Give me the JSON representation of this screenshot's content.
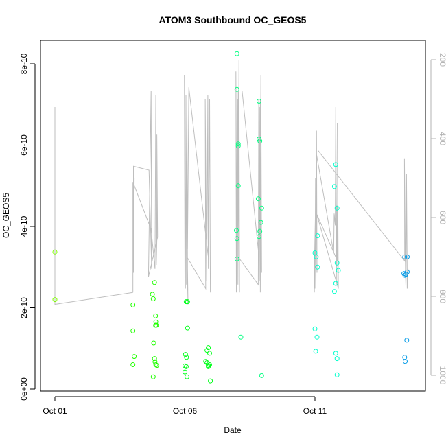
{
  "chart_data": {
    "type": "scatter",
    "title": "ATOM3 Southbound OC_GEOS5",
    "xlabel": "Date",
    "ylabel": "OC_GEOS5",
    "x_ticks": [
      "Oct 01",
      "Oct 06",
      "Oct 11"
    ],
    "y_ticks": [
      "0e+00",
      "2e-10",
      "4e-10",
      "6e-10",
      "8e-10"
    ],
    "y_tick_values": [
      0,
      2e-10,
      4e-10,
      6e-10,
      8e-10
    ],
    "y2_ticks": [
      "200",
      "400",
      "600",
      "800",
      "1000"
    ],
    "y2_tick_values": [
      200,
      400,
      600,
      800,
      1000
    ],
    "xlim_days": [
      0.9,
      14.8
    ],
    "ylim": [
      0,
      8.3e-10
    ],
    "y2lim": [
      1040,
      150
    ],
    "grid": false,
    "legend": "none",
    "line_color": "#bebebe",
    "point_series": [
      {
        "color": "#80ff00",
        "points": [
          [
            1.0,
            3.37e-10
          ],
          [
            1.0,
            2.2e-10
          ]
        ]
      },
      {
        "color": "#20ff00",
        "points": [
          [
            4.0,
            2.07e-10
          ],
          [
            4.0,
            1.43e-10
          ],
          [
            4.05,
            8e-11
          ],
          [
            4.0,
            6e-11
          ],
          [
            4.75,
            2.33e-10
          ],
          [
            4.78,
            2.22e-10
          ],
          [
            4.83,
            2.62e-10
          ],
          [
            4.87,
            1.8e-10
          ],
          [
            4.88,
            1.65e-10
          ],
          [
            4.87,
            1.57e-10
          ],
          [
            4.9,
            1.57e-10
          ],
          [
            4.8,
            1.13e-10
          ],
          [
            4.83,
            7.5e-11
          ],
          [
            4.85,
            6.7e-11
          ],
          [
            4.88,
            6e-11
          ],
          [
            4.92,
            5.8e-11
          ],
          [
            4.78,
            3e-11
          ]
        ]
      },
      {
        "color": "#00ff1a",
        "points": [
          [
            6.05,
            2.15e-10
          ],
          [
            6.1,
            2.15e-10
          ],
          [
            6.1,
            1.5e-10
          ],
          [
            6.02,
            8.5e-11
          ],
          [
            6.06,
            7.8e-11
          ],
          [
            6.0,
            5.7e-11
          ],
          [
            6.05,
            5.5e-11
          ],
          [
            6.0,
            4.2e-11
          ],
          [
            6.08,
            3e-11
          ],
          [
            6.85,
            9.5e-11
          ],
          [
            6.9,
            1.02e-10
          ],
          [
            6.95,
            8.8e-11
          ],
          [
            6.8,
            6.8e-11
          ],
          [
            6.85,
            6.5e-11
          ],
          [
            6.9,
            5.8e-11
          ],
          [
            6.95,
            6e-11
          ],
          [
            6.9,
            5.5e-11
          ],
          [
            6.98,
            2e-11
          ]
        ]
      },
      {
        "color": "#00ff80",
        "points": [
          [
            8.0,
            8.25e-10
          ],
          [
            8.0,
            7.37e-10
          ],
          [
            8.05,
            6.03e-10
          ],
          [
            8.05,
            5.98e-10
          ],
          [
            8.05,
            5e-10
          ],
          [
            7.98,
            3.9e-10
          ],
          [
            8.0,
            3.7e-10
          ],
          [
            8.0,
            3.2e-10
          ],
          [
            8.15,
            1.28e-10
          ],
          [
            8.85,
            7.08e-10
          ],
          [
            8.85,
            6.15e-10
          ],
          [
            8.88,
            6.1e-10
          ],
          [
            8.82,
            4.68e-10
          ],
          [
            8.95,
            4.45e-10
          ],
          [
            8.92,
            4.1e-10
          ],
          [
            8.88,
            3.88e-10
          ],
          [
            8.85,
            3.75e-10
          ],
          [
            8.95,
            3.3e-11
          ]
        ]
      },
      {
        "color": "#00ffcc",
        "points": [
          [
            11.0,
            3.35e-10
          ],
          [
            11.05,
            3.25e-10
          ],
          [
            11.1,
            3.77e-10
          ],
          [
            11.1,
            3e-10
          ],
          [
            11.0,
            1.48e-10
          ],
          [
            11.08,
            1.28e-10
          ],
          [
            11.03,
            9.3e-11
          ],
          [
            11.8,
            5.52e-10
          ],
          [
            11.75,
            4.98e-10
          ],
          [
            11.85,
            4.45e-10
          ],
          [
            11.85,
            3.1e-10
          ],
          [
            11.9,
            2.92e-10
          ],
          [
            11.8,
            2.6e-10
          ],
          [
            11.75,
            2.4e-10
          ],
          [
            11.8,
            8.8e-11
          ],
          [
            11.85,
            7.5e-11
          ],
          [
            11.85,
            3.5e-11
          ]
        ]
      },
      {
        "color": "#0099e6",
        "points": [
          [
            14.45,
            3.25e-10
          ],
          [
            14.55,
            3.25e-10
          ],
          [
            14.55,
            2.88e-10
          ],
          [
            14.42,
            2.84e-10
          ],
          [
            14.46,
            2.8e-10
          ],
          [
            14.5,
            2.82e-10
          ],
          [
            14.53,
            1.2e-10
          ],
          [
            14.45,
            7.8e-11
          ],
          [
            14.47,
            6.8e-11
          ]
        ]
      }
    ],
    "pressure_profiles": [
      {
        "points": [
          [
            1.0,
            320
          ],
          [
            1.0,
            820
          ],
          [
            4.0,
            790
          ]
        ]
      },
      {
        "points": [
          [
            4.0,
            790
          ],
          [
            4.0,
            510
          ],
          [
            4.7,
            630
          ],
          [
            4.85,
            730
          ],
          [
            4.88,
            290
          ],
          [
            4.9,
            720
          ],
          [
            4.92,
            660
          ],
          [
            4.92,
            390
          ],
          [
            4.95,
            650
          ],
          [
            4.6,
            750
          ],
          [
            4.7,
            280
          ],
          [
            4.72,
            730
          ],
          [
            4.62,
            480
          ],
          [
            4.02,
            470
          ],
          [
            4.02,
            740
          ],
          [
            4.05,
            500
          ]
        ]
      },
      {
        "points": [
          [
            6.0,
            760
          ],
          [
            5.98,
            240
          ],
          [
            6.02,
            780
          ],
          [
            6.04,
            290
          ],
          [
            6.06,
            770
          ],
          [
            6.08,
            330
          ],
          [
            6.1,
            730
          ],
          [
            6.12,
            820
          ],
          [
            6.08,
            700
          ],
          [
            6.8,
            780
          ],
          [
            6.78,
            300
          ],
          [
            6.84,
            760
          ],
          [
            6.88,
            290
          ],
          [
            6.9,
            730
          ],
          [
            6.95,
            300
          ],
          [
            6.98,
            790
          ],
          [
            6.95,
            310
          ],
          [
            6.9,
            700
          ],
          [
            6.15,
            270
          ],
          [
            6.1,
            680
          ]
        ]
      },
      {
        "points": [
          [
            7.98,
            790
          ],
          [
            7.96,
            230
          ],
          [
            8.0,
            780
          ],
          [
            8.02,
            300
          ],
          [
            8.04,
            770
          ],
          [
            8.05,
            280
          ],
          [
            8.1,
            790
          ],
          [
            8.08,
            200
          ],
          [
            8.05,
            700
          ],
          [
            8.82,
            770
          ],
          [
            8.84,
            300
          ],
          [
            8.86,
            760
          ],
          [
            8.88,
            320
          ],
          [
            8.9,
            790
          ],
          [
            8.92,
            240
          ],
          [
            8.95,
            740
          ],
          [
            8.9,
            300
          ],
          [
            8.85,
            700
          ],
          [
            8.2,
            280
          ]
        ]
      },
      {
        "points": [
          [
            10.98,
            790
          ],
          [
            10.96,
            600
          ],
          [
            11.0,
            780
          ],
          [
            11.02,
            500
          ],
          [
            11.04,
            770
          ],
          [
            11.06,
            380
          ],
          [
            11.08,
            740
          ],
          [
            11.06,
            440
          ],
          [
            11.72,
            690
          ],
          [
            11.74,
            590
          ],
          [
            11.78,
            620
          ],
          [
            11.8,
            320
          ],
          [
            11.84,
            770
          ],
          [
            11.82,
            600
          ],
          [
            11.86,
            710
          ],
          [
            11.85,
            570
          ],
          [
            11.88,
            740
          ],
          [
            11.86,
            360
          ],
          [
            11.9,
            780
          ],
          [
            11.06,
            590
          ],
          [
            11.8,
            700
          ]
        ]
      },
      {
        "points": [
          [
            11.12,
            430
          ],
          [
            14.45,
            710
          ],
          [
            14.44,
            450
          ],
          [
            14.48,
            740
          ],
          [
            14.5,
            780
          ],
          [
            14.52,
            490
          ],
          [
            14.55,
            780
          ],
          [
            14.58,
            730
          ]
        ]
      }
    ]
  }
}
